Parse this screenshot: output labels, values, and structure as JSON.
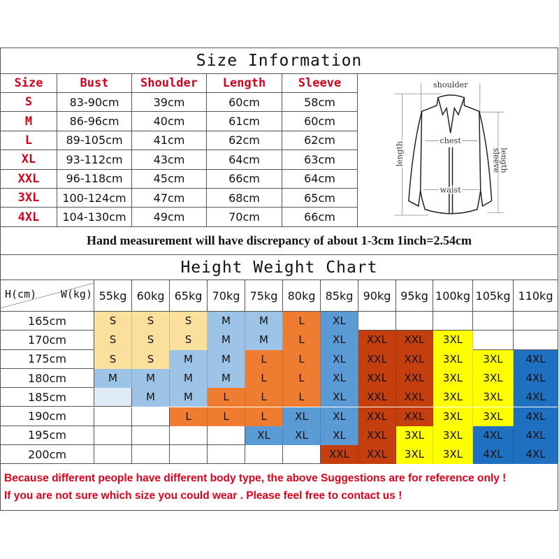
{
  "size_info": {
    "title": "Size Information",
    "headers": [
      "Size",
      "Bust",
      "Shoulder",
      "Length",
      "Sleeve"
    ],
    "rows": [
      [
        "S",
        "83-90cm",
        "39cm",
        "60cm",
        "58cm"
      ],
      [
        "M",
        "86-96cm",
        "40cm",
        "61cm",
        "60cm"
      ],
      [
        "L",
        "89-105cm",
        "41cm",
        "62cm",
        "62cm"
      ],
      [
        "XL",
        "93-112cm",
        "43cm",
        "64cm",
        "63cm"
      ],
      [
        "XXL",
        "96-118cm",
        "45cm",
        "66cm",
        "64cm"
      ],
      [
        "3XL",
        "100-124cm",
        "47cm",
        "68cm",
        "65cm"
      ],
      [
        "4XL",
        "104-130cm",
        "49cm",
        "70cm",
        "66cm"
      ]
    ],
    "diagram_labels": {
      "shoulder": "shoulder",
      "chest": "chest",
      "waist": "waist",
      "length": "length",
      "sleeve": "sleeve",
      "sleeve_length": "length"
    }
  },
  "note": "Hand measurement will have discrepancy of about 1-3cm  1inch=2.54cm",
  "height_weight": {
    "title": "Height Weight Chart",
    "corner_h": "H(cm)",
    "corner_w": "W(kg)",
    "weights": [
      "55kg",
      "60kg",
      "65kg",
      "70kg",
      "75kg",
      "80kg",
      "85kg",
      "90kg",
      "95kg",
      "100kg",
      "105kg",
      "110kg"
    ],
    "heights": [
      "165cm",
      "170cm",
      "175cm",
      "180cm",
      "185cm",
      "190cm",
      "195cm",
      "200cm"
    ],
    "grid": [
      [
        "S",
        "S",
        "S",
        "M",
        "M",
        "L",
        "XL",
        "",
        "",
        "",
        "",
        ""
      ],
      [
        "S",
        "S",
        "S",
        "M",
        "M",
        "L",
        "XL",
        "XXL",
        "XXL",
        "3XL",
        "",
        ""
      ],
      [
        "S",
        "S",
        "M",
        "M",
        "L",
        "L",
        "XL",
        "XXL",
        "XXL",
        "3XL",
        "3XL",
        "4XL"
      ],
      [
        "M",
        "M",
        "M",
        "M",
        "L",
        "L",
        "XL",
        "XXL",
        "XXL",
        "3XL",
        "3XL",
        "4XL"
      ],
      [
        "",
        "M",
        "M",
        "L",
        "L",
        "L",
        "XL",
        "XXL",
        "XXL",
        "3XL",
        "3XL",
        "4XL"
      ],
      [
        "",
        "",
        "L",
        "L",
        "L",
        "XL",
        "XL",
        "XXL",
        "XXL",
        "3XL",
        "3XL",
        "4XL"
      ],
      [
        "",
        "",
        "",
        "",
        "XL",
        "XL",
        "XL",
        "XXL",
        "3XL",
        "3XL",
        "4XL",
        "4XL"
      ],
      [
        "",
        "",
        "",
        "",
        "",
        "",
        "XXL",
        "XXL",
        "3XL",
        "3XL",
        "4XL",
        "4XL"
      ]
    ],
    "pale_cells": [
      [
        4,
        0
      ]
    ],
    "colors": {
      "S": "#fbdf9d",
      "M": "#9dc3e6",
      "L": "#ee7d31",
      "XL": "#5b9bd5",
      "XXL": "#c53e0e",
      "3XL": "#ffff00",
      "4XL": "#1f70c1",
      "pale": "#deebf7"
    }
  },
  "footer": [
    "Because different people have different body type, the above Suggestions are for reference only !",
    "If you are not sure which size you could wear . Please feel free to contact us !"
  ]
}
